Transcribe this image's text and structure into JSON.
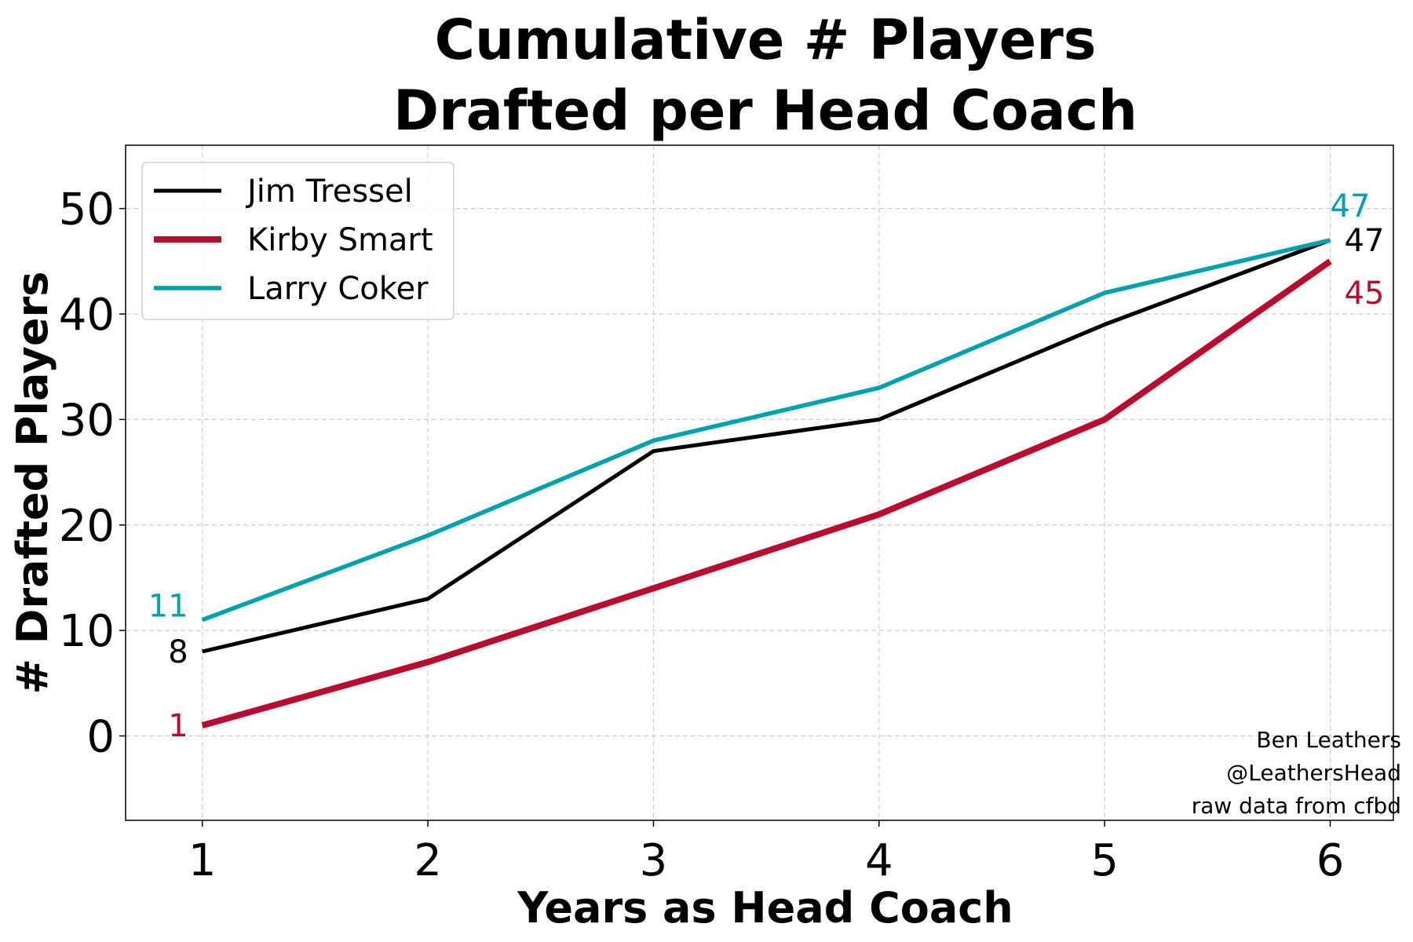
{
  "chart_data": {
    "type": "line",
    "title_lines": [
      "Cumulative # Players",
      "Drafted per Head Coach"
    ],
    "xlabel": "Years as Head Coach",
    "ylabel": "# Drafted Players",
    "x": [
      1,
      2,
      3,
      4,
      5,
      6
    ],
    "xlim": [
      0.66,
      6.28
    ],
    "ylim": [
      -8,
      56
    ],
    "xticks": [
      1,
      2,
      3,
      4,
      5,
      6
    ],
    "yticks": [
      0,
      10,
      20,
      30,
      40,
      50
    ],
    "grid": true,
    "legend_position": "top-left",
    "series": [
      {
        "name": "Jim Tressel",
        "color": "#000000",
        "values": [
          8,
          13,
          27,
          30,
          39,
          47
        ],
        "start_label": "8",
        "end_label": "47"
      },
      {
        "name": "Kirby Smart",
        "color": "#ba0c2f",
        "values": [
          1,
          7,
          14,
          21,
          30,
          45
        ],
        "start_label": "1",
        "end_label": "45"
      },
      {
        "name": "Larry Coker",
        "color": "#00a3ad",
        "values": [
          11,
          19,
          28,
          33,
          42,
          47
        ],
        "start_label": "11",
        "end_label": "47"
      }
    ],
    "credits": [
      "Ben Leathers",
      "@LeathersHead",
      "raw data from cfbd"
    ]
  }
}
